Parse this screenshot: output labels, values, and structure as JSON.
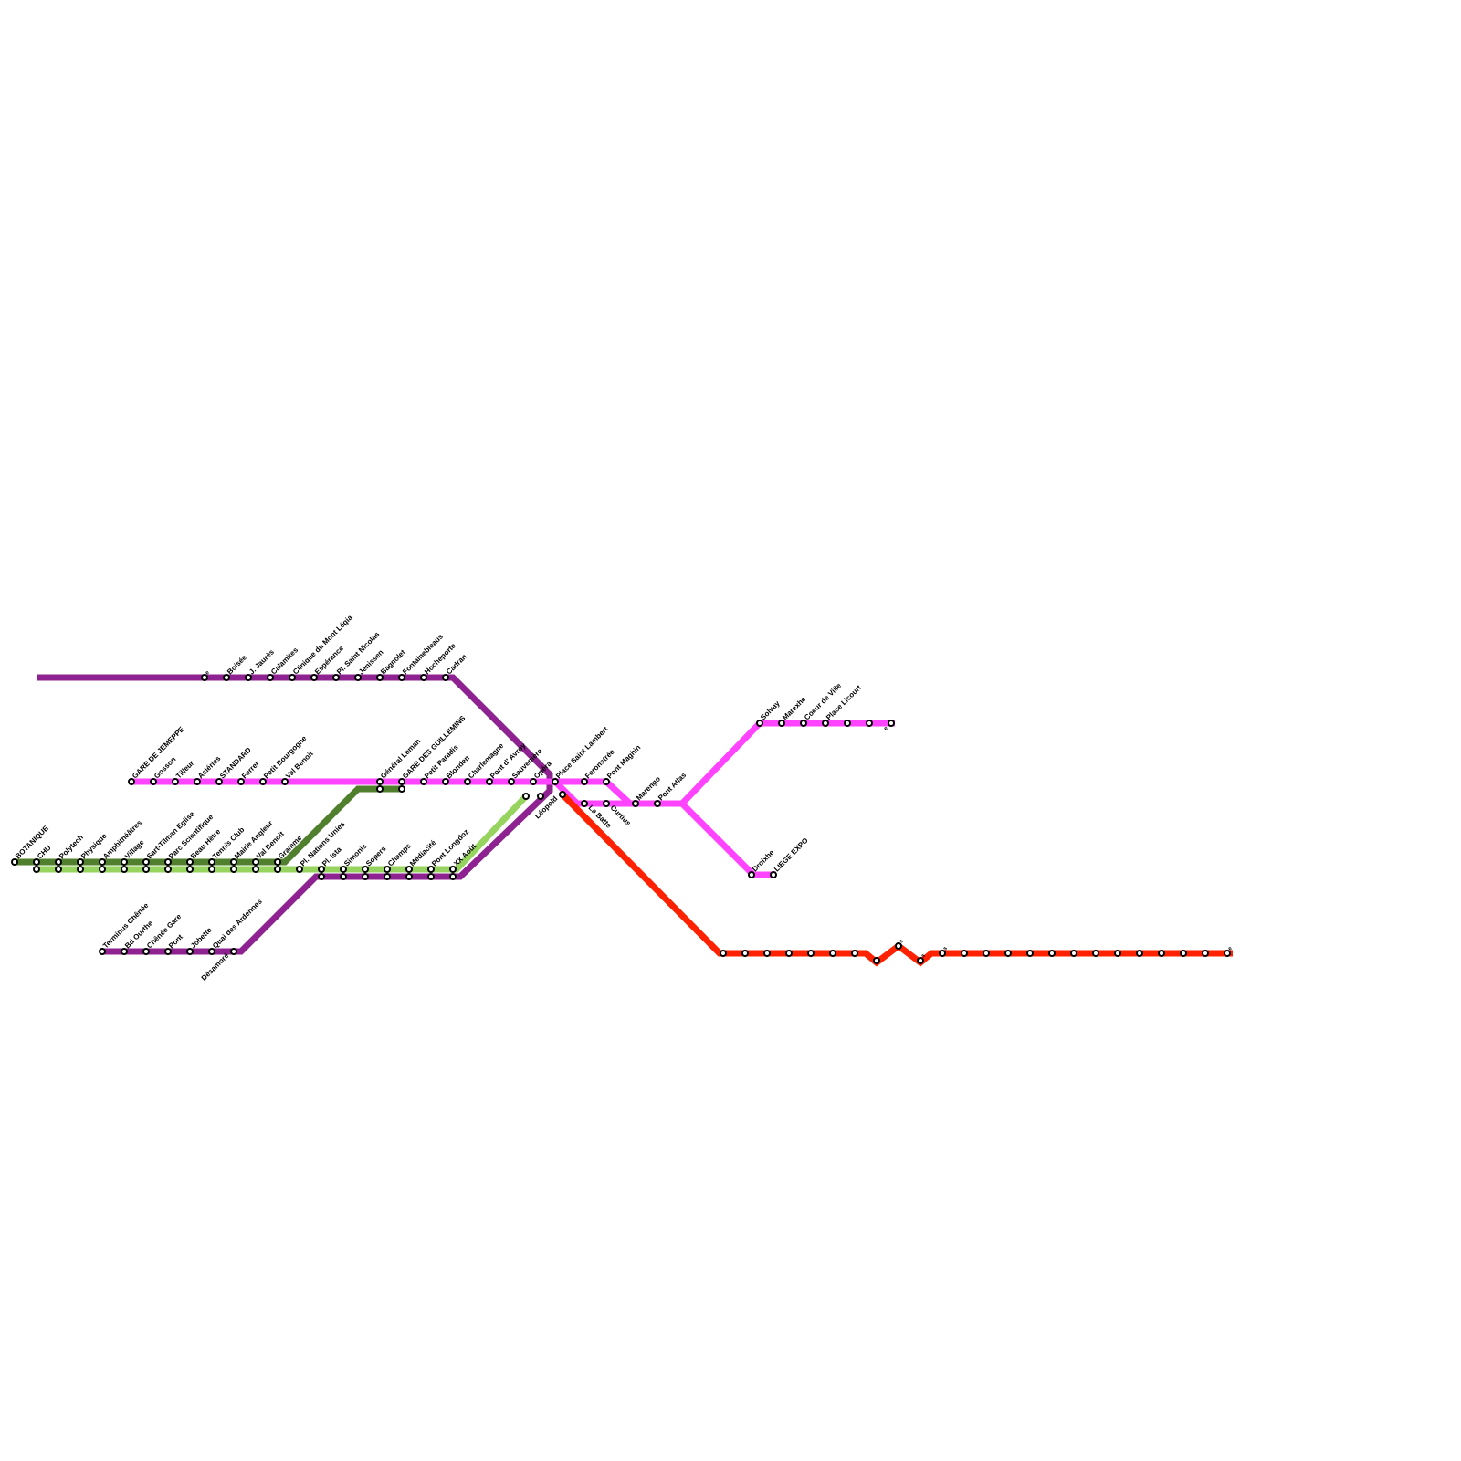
{
  "colors": {
    "purple": "#8E2290",
    "pink": "#FF44FF",
    "dark_green": "#507F2E",
    "light_green": "#96D35F",
    "red": "#FF2200"
  },
  "stations": {
    "green_trunk": [
      "BOTANIQUE",
      "CHU",
      "Polytech",
      "Physique",
      "Amphithéâtres",
      "Village",
      "Sart-Tilman Eglise",
      "Parc Scientifique",
      "Beau Hêtre",
      "Tennis Club",
      "Mairie Angleur",
      "Val Benoit",
      "Gramme"
    ],
    "longdoz": [
      "Pl. Nations Unies",
      "Pl. Ista",
      "Simonis",
      "Sopers",
      "Champs",
      "Médiacité",
      "Pont Longdoz",
      "XX Août"
    ],
    "purple_top": [
      "e",
      "Boisée",
      "J. Jaurès",
      "Calamites",
      "Clinique du Mont Légia",
      "Espérance",
      "Pl. Saint Nicolas",
      "Jenissen",
      "Bagnolet",
      "Fontainebleaus",
      "Hocheporte",
      "Cadran"
    ],
    "chenee": [
      "Terminus Chênée",
      "Bd Ourthe",
      "Chênée Gare",
      "Pont",
      "Jobette",
      "Quai des Ardennes",
      "Désamoré"
    ],
    "pink_west": [
      "GARE DE JEMEPPE",
      "Gosson",
      "Tilleur",
      "Aciéries",
      "STANDARD",
      "Ferrer",
      "Petit Bourgogne",
      "Val Benoit"
    ],
    "pink_center": [
      "Général Leman",
      "GARE DES GUILLEMINS",
      "Petit Paradis",
      "Blonden",
      "Charlemagne",
      "Pont d' Avroy",
      "Sauvenière",
      "Opéra",
      "Place Saint Lambert",
      "Feronstrée",
      "Pont Maghin"
    ],
    "pink_lower_below": [
      "La Batte",
      "Curtius"
    ],
    "pink_lower": [
      "Marengo",
      "Pont Atlas"
    ],
    "pink_north": [
      "Solvay",
      "Marexhe",
      "Coeur de Ville",
      "Place Licourt",
      "",
      "",
      "e"
    ],
    "pink_south": [
      "Droixhe",
      "LIEGE EXPO"
    ],
    "red_start": "Léopold",
    "red": [
      "",
      "",
      "",
      "",
      "",
      "",
      "",
      "",
      "s",
      "s",
      "s",
      "",
      "",
      "",
      "",
      "",
      "",
      "",
      "",
      "",
      "",
      "",
      "",
      "e"
    ]
  }
}
